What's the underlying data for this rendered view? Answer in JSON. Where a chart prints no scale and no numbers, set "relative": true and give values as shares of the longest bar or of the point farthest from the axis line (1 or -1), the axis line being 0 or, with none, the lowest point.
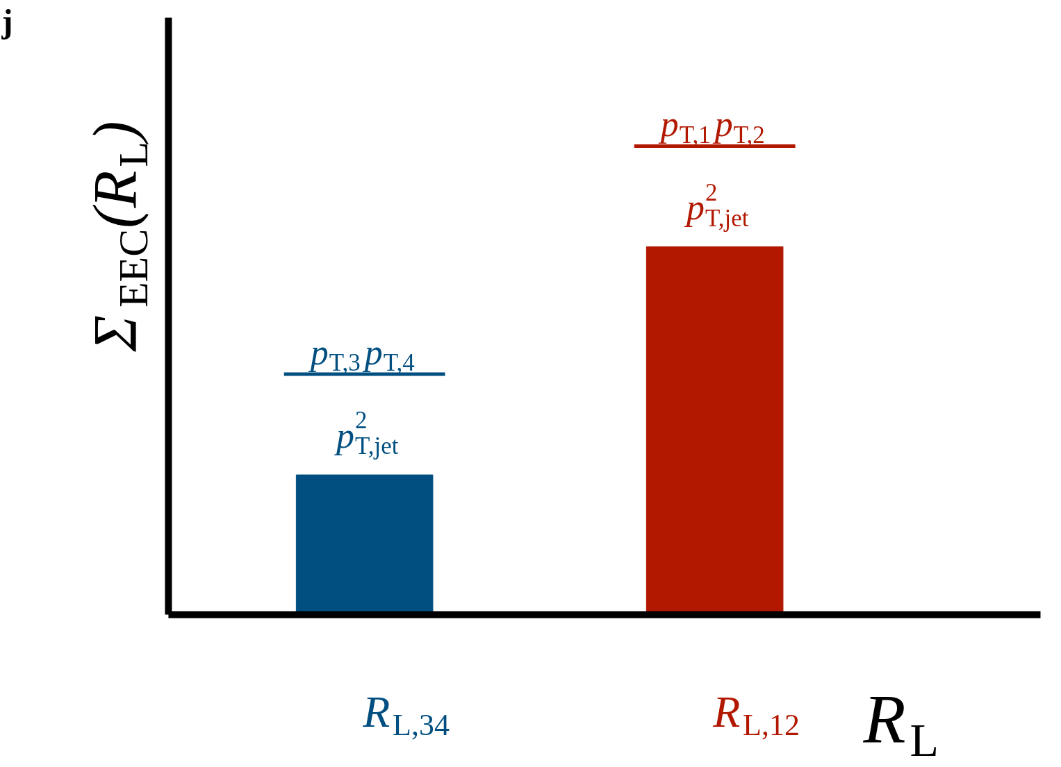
{
  "chart_data": {
    "type": "bar",
    "relative": true,
    "categories": [
      "R$_{L,34}$",
      "R$_{L,12}$"
    ],
    "values": [
      0.38,
      1
    ],
    "colors": [
      "#004f80",
      "#b21800"
    ],
    "xlabel": "R$_{L}$",
    "ylabel": "Σ$_{EEC}$(R$_{L}$)",
    "annotations": [
      "j",
      "p$_{T,3}$p$_{T,4}$",
      "p$^{2}$$_{T,jet}$",
      "p$_{T,1}$p$_{T,2}$",
      "p$^{2}$$_{T,jet}$"
    ]
  }
}
